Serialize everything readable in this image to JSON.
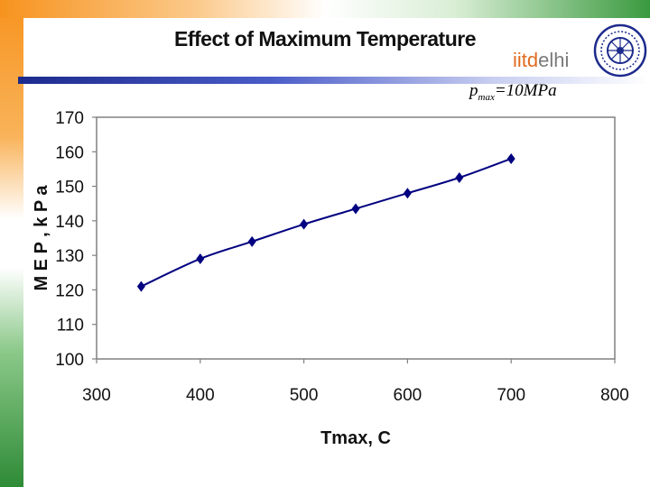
{
  "slide": {
    "title": "Effect of Maximum Temperature",
    "logo": {
      "part1": "iitd",
      "part2": "elhi"
    },
    "annotation": {
      "p": "p",
      "sub": "max",
      "rest": "=10MPa"
    }
  },
  "colors": {
    "series": "#000080",
    "header_bar": "#1c2a8c"
  },
  "chart_data": {
    "type": "line",
    "title": "Effect of Maximum Temperature",
    "xlabel": "Tmax, C",
    "ylabel": "M E P , k P a",
    "xlim": [
      300,
      800
    ],
    "ylim": [
      100,
      170
    ],
    "xticks": [
      300,
      400,
      500,
      600,
      700,
      800
    ],
    "yticks": [
      100,
      110,
      120,
      130,
      140,
      150,
      160,
      170
    ],
    "series": [
      {
        "name": "pmax=10MPa",
        "x": [
          343,
          400,
          450,
          500,
          550,
          600,
          650,
          700
        ],
        "y": [
          121,
          129,
          134,
          139,
          143.5,
          148,
          152.5,
          158
        ]
      }
    ],
    "grid": false
  }
}
